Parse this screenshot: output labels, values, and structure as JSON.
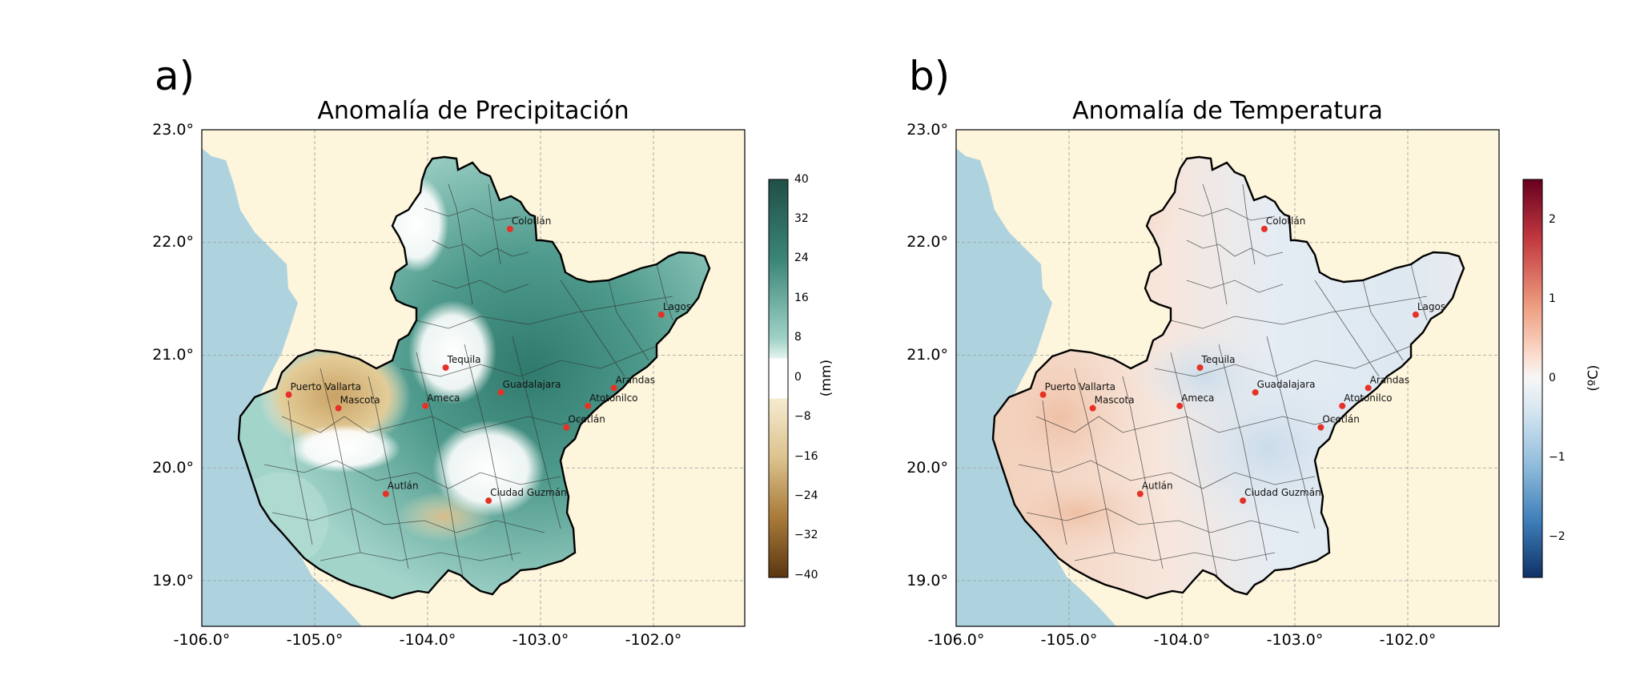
{
  "panels": [
    {
      "letter": "a)",
      "title": "Anomalía de Precipitación",
      "colorbar_label": "(mm)",
      "colorbar_ticks": [
        "40",
        "32",
        "24",
        "16",
        "8",
        "0",
        "−8",
        "−16",
        "−24",
        "−32",
        "−40"
      ],
      "colormap": [
        "#8a5a1c",
        "#c49a55",
        "#ecdcaf",
        "#ffffff",
        "#c6e7e0",
        "#6fb6a8",
        "#1f5c52"
      ]
    },
    {
      "letter": "b)",
      "title": "Anomalía de Temperatura",
      "colorbar_label": "(ºC)",
      "colorbar_ticks": [
        "2",
        "1",
        "0",
        "−1",
        "−2"
      ],
      "colormap": [
        "#1c3f7a",
        "#6f9cc8",
        "#d8e4ef",
        "#f6f2f0",
        "#f0c2a6",
        "#c8524a",
        "#6b0d1e"
      ]
    }
  ],
  "axes": {
    "y_ticks": [
      "23.0°",
      "22.0°",
      "21.0°",
      "20.0°",
      "19.0°"
    ],
    "x_ticks": [
      "-106.0°",
      "-105.0°",
      "-104.0°",
      "-103.0°",
      "-102.0°"
    ]
  },
  "cities": [
    {
      "name": "Colotlán",
      "lon": -103.27,
      "lat": 22.12
    },
    {
      "name": "Lagos",
      "lon": -101.93,
      "lat": 21.36
    },
    {
      "name": "Tequila",
      "lon": -103.84,
      "lat": 20.89
    },
    {
      "name": "Puerto Vallarta",
      "lon": -105.23,
      "lat": 20.65
    },
    {
      "name": "Mascota",
      "lon": -104.79,
      "lat": 20.53
    },
    {
      "name": "Ameca",
      "lon": -104.02,
      "lat": 20.55
    },
    {
      "name": "Guadalajara",
      "lon": -103.35,
      "lat": 20.67
    },
    {
      "name": "Arandas",
      "lon": -102.35,
      "lat": 20.71
    },
    {
      "name": "Atotonilco",
      "lon": -102.58,
      "lat": 20.55
    },
    {
      "name": "Ocotlán",
      "lon": -102.77,
      "lat": 20.36
    },
    {
      "name": "Autlán",
      "lon": -104.37,
      "lat": 19.77
    },
    {
      "name": "Ciudad Guzmán",
      "lon": -103.46,
      "lat": 19.71
    }
  ],
  "colors": {
    "ocean": "#aed3df",
    "land_outside": "#fdf5dc",
    "city_marker": "#e63226",
    "grid": "#9a9a9a"
  }
}
